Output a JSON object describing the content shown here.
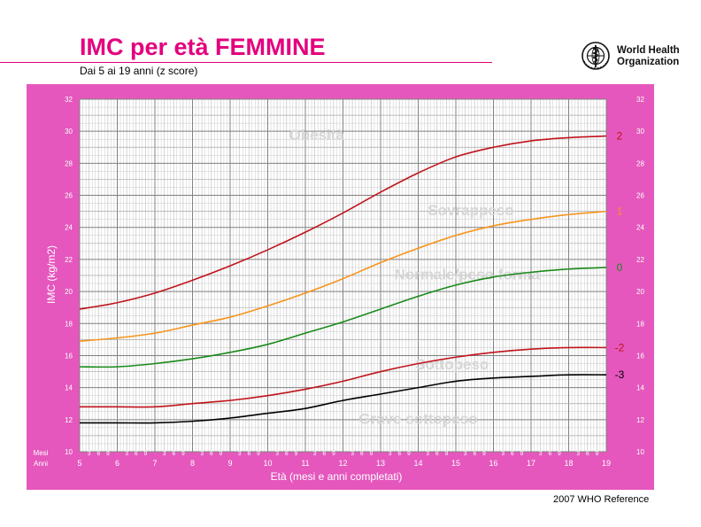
{
  "header": {
    "title": "IMC per età FEMMINE",
    "subtitle": "Dai 5 ai 19 anni (z score)",
    "org_line1": "World Health",
    "org_line2": "Organization",
    "logo_icon": "who-emblem-icon",
    "accent_color": "#e3007e"
  },
  "footer": {
    "reference": "2007 WHO Reference"
  },
  "colors": {
    "frame": "#e557bd",
    "grid_major": "#808080",
    "grid_minor": "#c8c8c8",
    "zone_label": "#d6d6d6"
  },
  "chart_data": {
    "type": "line",
    "title": "",
    "xlabel": "Età (mesi e anni completati)",
    "ylabel": "IMC (kg/m2)",
    "xlim": [
      5,
      19
    ],
    "ylim": [
      10,
      32
    ],
    "x_ticks": [
      5,
      6,
      7,
      8,
      9,
      10,
      11,
      12,
      13,
      14,
      15,
      16,
      17,
      18,
      19
    ],
    "y_ticks": [
      10,
      12,
      14,
      16,
      18,
      20,
      22,
      24,
      26,
      28,
      30,
      32
    ],
    "month_ticks": [
      "3",
      "6",
      "9"
    ],
    "axis_row_labels": {
      "months": "Mesi",
      "years": "Anni"
    },
    "grid": true,
    "x": [
      5,
      6,
      7,
      8,
      9,
      10,
      11,
      12,
      13,
      14,
      15,
      16,
      17,
      18,
      19
    ],
    "series": [
      {
        "name": "2",
        "color": "#c0141c",
        "values": [
          18.9,
          19.3,
          19.9,
          20.7,
          21.6,
          22.6,
          23.7,
          24.9,
          26.2,
          27.4,
          28.4,
          29.0,
          29.4,
          29.6,
          29.7
        ]
      },
      {
        "name": "1",
        "color": "#f7941d",
        "values": [
          16.9,
          17.1,
          17.4,
          17.9,
          18.4,
          19.1,
          19.9,
          20.8,
          21.8,
          22.7,
          23.5,
          24.1,
          24.5,
          24.8,
          25.0
        ]
      },
      {
        "name": "0",
        "color": "#1a8a1a",
        "values": [
          15.3,
          15.3,
          15.5,
          15.8,
          16.2,
          16.7,
          17.4,
          18.1,
          18.9,
          19.7,
          20.4,
          20.9,
          21.2,
          21.4,
          21.5
        ]
      },
      {
        "name": "-2",
        "color": "#c0141c",
        "values": [
          12.8,
          12.8,
          12.8,
          13.0,
          13.2,
          13.5,
          13.9,
          14.4,
          15.0,
          15.5,
          15.9,
          16.2,
          16.4,
          16.5,
          16.5
        ]
      },
      {
        "name": "-3",
        "color": "#000000",
        "values": [
          11.8,
          11.8,
          11.8,
          11.9,
          12.1,
          12.4,
          12.7,
          13.2,
          13.6,
          14.0,
          14.4,
          14.6,
          14.7,
          14.8,
          14.8
        ]
      }
    ],
    "zone_labels": [
      {
        "text": "Obesità",
        "x": 11.3,
        "y": 29.7
      },
      {
        "text": "Sovrappeso",
        "x": 15.4,
        "y": 25.0
      },
      {
        "text": "Normale/peso forma",
        "x": 15.3,
        "y": 21.0
      },
      {
        "text": "Sottopeso",
        "x": 14.9,
        "y": 15.4
      },
      {
        "text": "Grave sottopeso",
        "x": 14.0,
        "y": 12.0
      }
    ]
  }
}
